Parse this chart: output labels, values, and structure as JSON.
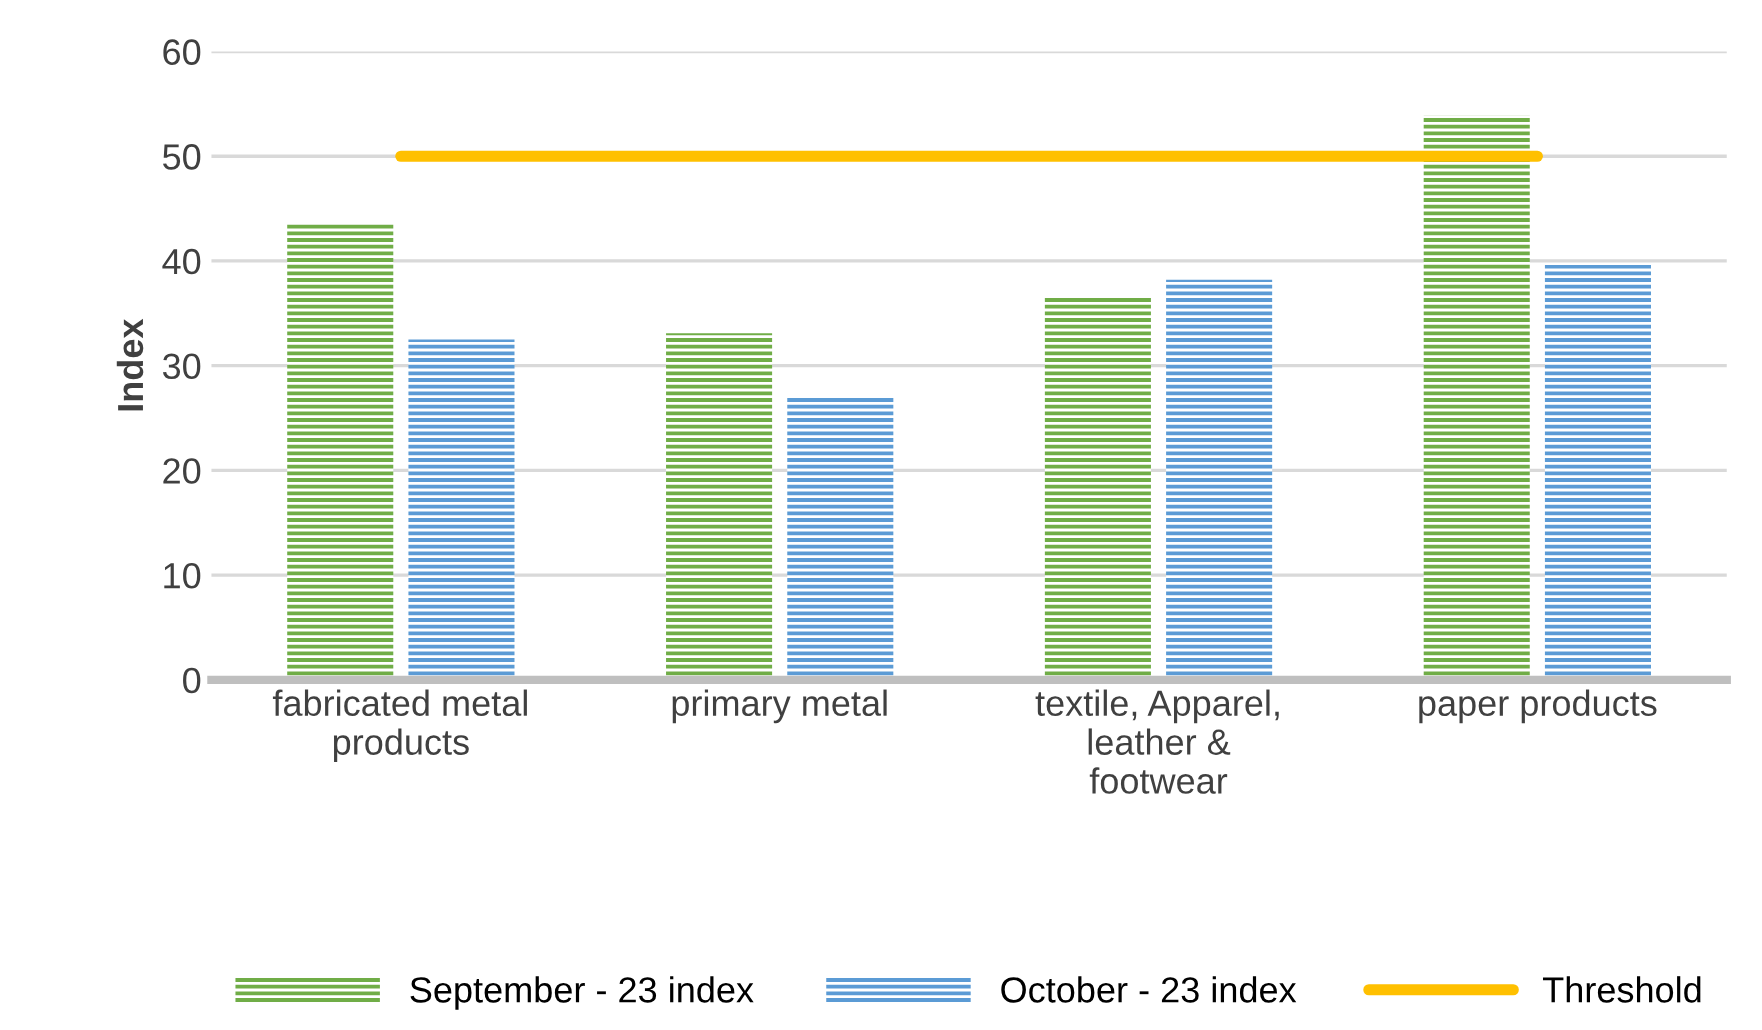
{
  "chart_data": {
    "type": "bar",
    "ylabel": "Index",
    "categories": [
      "fabricated metal\nproducts",
      "primary metal",
      "textile, Apparel,\nleather &\nfootwear",
      "paper products"
    ],
    "series": [
      {
        "name": "September - 23 index",
        "color": "#70ad47",
        "values": [
          43.6,
          33.1,
          36.5,
          53.9
        ]
      },
      {
        "name": "October - 23 index",
        "color": "#5b9bd5",
        "values": [
          32.5,
          27.0,
          38.2,
          39.6
        ]
      },
      {
        "name": "Threshold",
        "type": "line",
        "color": "#ffc000",
        "values": [
          50,
          50,
          50,
          50
        ]
      }
    ],
    "ylim": [
      0,
      60
    ],
    "yticks": [
      0,
      10,
      20,
      30,
      40,
      50,
      60
    ],
    "grid": "y",
    "legend": "bottom"
  }
}
